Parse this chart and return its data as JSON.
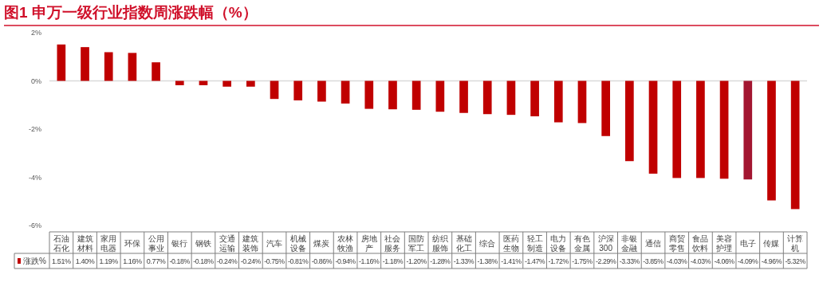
{
  "chart_data": {
    "type": "bar",
    "title": "图1  申万一级行业指数周涨跌幅（%）",
    "categories": [
      "石油石化",
      "建筑材料",
      "家用电器",
      "环保",
      "公用事业",
      "银行",
      "钢铁",
      "交通运输",
      "建筑装饰",
      "汽车",
      "机械设备",
      "煤炭",
      "农林牧渔",
      "房地产",
      "社会服务",
      "国防军工",
      "纺织服饰",
      "基础化工",
      "综合",
      "医药生物",
      "轻工制造",
      "电力设备",
      "有色金属",
      "沪深300",
      "非银金融",
      "通信",
      "商贸零售",
      "食品饮料",
      "美容护理",
      "电子",
      "传媒",
      "计算机"
    ],
    "series": [
      {
        "name": "涨跌%",
        "color": "#c00000",
        "colors": [
          "#c00000",
          "#c00000",
          "#c00000",
          "#c00000",
          "#c00000",
          "#c00000",
          "#c00000",
          "#c00000",
          "#c00000",
          "#c00000",
          "#c00000",
          "#c00000",
          "#c00000",
          "#c00000",
          "#c00000",
          "#c00000",
          "#c00000",
          "#c00000",
          "#c00000",
          "#c00000",
          "#c00000",
          "#c00000",
          "#c00000",
          "#c00000",
          "#c00000",
          "#c00000",
          "#c00000",
          "#c00000",
          "#c00000",
          "#a31631",
          "#c00000",
          "#c00000"
        ],
        "values": [
          1.51,
          1.4,
          1.19,
          1.16,
          0.77,
          -0.18,
          -0.18,
          -0.24,
          -0.24,
          -0.75,
          -0.81,
          -0.86,
          -0.94,
          -1.16,
          -1.18,
          -1.2,
          -1.28,
          -1.33,
          -1.38,
          -1.41,
          -1.47,
          -1.72,
          -1.75,
          -2.29,
          -3.33,
          -3.85,
          -4.03,
          -4.03,
          -4.06,
          -4.09,
          -4.96,
          -5.32
        ],
        "value_labels": [
          "1.51%",
          "1.40%",
          "1.19%",
          "1.16%",
          "0.77%",
          "-0.18%",
          "-0.18%",
          "-0.24%",
          "-0.24%",
          "-0.75%",
          "-0.81%",
          "-0.86%",
          "-0.94%",
          "-1.16%",
          "-1.18%",
          "-1.20%",
          "-1.28%",
          "-1.33%",
          "-1.38%",
          "-1.41%",
          "-1.47%",
          "-1.72%",
          "-1.75%",
          "-2.29%",
          "-3.33%",
          "-3.85%",
          "-4.03%",
          "-4.03%",
          "-4.06%",
          "-4.09%",
          "-4.96%",
          "-5.32%"
        ]
      }
    ],
    "ylim": [
      -6,
      2
    ],
    "yticks": [
      {
        "value": 2,
        "label": "2%"
      },
      {
        "value": 0,
        "label": "0%"
      },
      {
        "value": -2,
        "label": "-2%"
      },
      {
        "value": -4,
        "label": "-4%"
      },
      {
        "value": -6,
        "label": "-6%"
      }
    ],
    "legend": "bottom"
  }
}
